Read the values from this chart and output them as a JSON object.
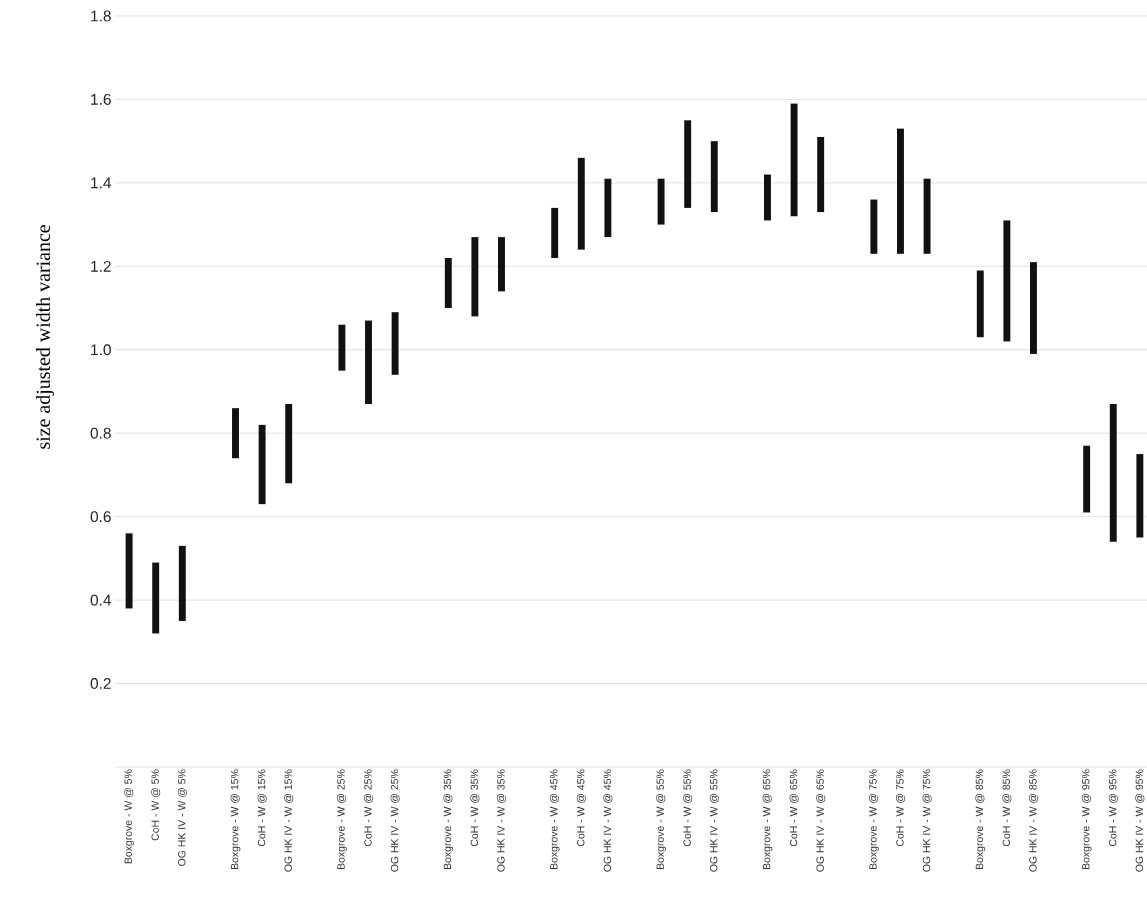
{
  "chart_data": {
    "type": "bar",
    "ylabel": "size adjusted width variance",
    "categories": [
      "Boxgrove - W @ 5%",
      "CoH - W @ 5%",
      "OG HK IV -  W @ 5%",
      null,
      "Boxgrove - W @ 15%",
      "CoH - W @ 15%",
      "OG HK IV -  W @ 15%",
      null,
      "Boxgrove - W @ 25%",
      "CoH - W @ 25%",
      "OG HK IV -  W @ 25%",
      null,
      "Boxgrove - W @ 35%",
      "CoH - W @ 35%",
      "OG HK IV -  W @ 35%",
      null,
      "Boxgrove - W @ 45%",
      "CoH - W @ 45%",
      "OG HK IV -  W @ 45%",
      null,
      "Boxgrove - W @ 55%",
      "CoH - W @ 55%",
      "OG HK IV -  W @ 55%",
      null,
      "Boxgrove - W @ 65%",
      "CoH - W @ 65%",
      "OG HK IV -  W @ 65%",
      null,
      "Boxgrove - W @ 75%",
      "CoH - W @ 75%",
      "OG HK IV -  W @ 75%",
      null,
      "Boxgrove - W @ 85%",
      "CoH - W @ 85%",
      "OG HK IV -  W @ 85%",
      null,
      "Boxgrove - W @ 95%",
      "CoH - W @ 95%",
      "OG HK IV -  W @ 95%"
    ],
    "base": [
      0.38,
      0.32,
      0.35,
      null,
      0.74,
      0.63,
      0.68,
      null,
      0.95,
      0.87,
      0.94,
      null,
      1.1,
      1.08,
      1.14,
      null,
      1.22,
      1.24,
      1.27,
      null,
      1.3,
      1.34,
      1.33,
      null,
      1.31,
      1.32,
      1.33,
      null,
      1.23,
      1.23,
      1.23,
      null,
      1.03,
      1.02,
      0.99,
      null,
      0.61,
      0.54,
      0.55
    ],
    "values": [
      0.18,
      0.17,
      0.18,
      null,
      0.12,
      0.19,
      0.19,
      null,
      0.11,
      0.2,
      0.15,
      null,
      0.12,
      0.19,
      0.13,
      null,
      0.12,
      0.22,
      0.14,
      null,
      0.11,
      0.21,
      0.17,
      null,
      0.11,
      0.27,
      0.18,
      null,
      0.13,
      0.3,
      0.18,
      null,
      0.16,
      0.29,
      0.22,
      null,
      0.16,
      0.33,
      0.2
    ],
    "color": "#111111",
    "ylim": [
      0,
      1.8
    ],
    "yticks": [
      0.2,
      0.4,
      0.6,
      0.8,
      {
        "value": 1,
        "label": "1.0"
      },
      1.2,
      1.4,
      1.6,
      1.8
    ],
    "grid": "y"
  }
}
